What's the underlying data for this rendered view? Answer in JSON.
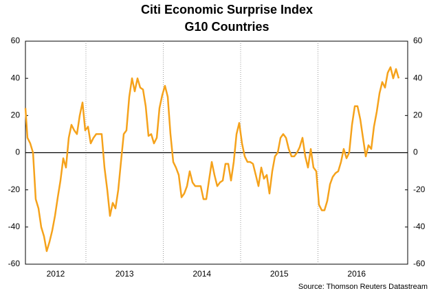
{
  "chart_data": {
    "type": "line",
    "title": "Citi Economic Surprise Index",
    "subtitle": "G10 Countries",
    "source": "Source: Thomson Reuters Datastream",
    "xlim": [
      2012.218,
      2017.16
    ],
    "xticks": [
      2012,
      2013,
      2014,
      2015,
      2016
    ],
    "ylim": [
      -60,
      60
    ],
    "yticks": [
      -60,
      -40,
      -20,
      0,
      20,
      40,
      60
    ],
    "y2lim": [
      -60,
      60
    ],
    "y2ticks": [
      -60,
      -40,
      -20,
      0,
      20,
      40,
      60
    ],
    "zero_line": true,
    "grid": true,
    "x": [
      2012.218,
      2012.244,
      2012.28,
      2012.316,
      2012.351,
      2012.387,
      2012.422,
      2012.458,
      2012.493,
      2012.529,
      2012.564,
      2012.6,
      2012.636,
      2012.671,
      2012.707,
      2012.742,
      2012.778,
      2012.813,
      2012.849,
      2012.884,
      2012.92,
      2012.956,
      2012.991,
      2013.027,
      2013.062,
      2013.098,
      2013.133,
      2013.169,
      2013.204,
      2013.24,
      2013.276,
      2013.311,
      2013.347,
      2013.382,
      2013.418,
      2013.453,
      2013.489,
      2013.524,
      2013.56,
      2013.596,
      2013.631,
      2013.667,
      2013.702,
      2013.738,
      2013.773,
      2013.809,
      2013.844,
      2013.88,
      2013.916,
      2013.951,
      2013.987,
      2014.022,
      2014.058,
      2014.093,
      2014.129,
      2014.164,
      2014.2,
      2014.236,
      2014.271,
      2014.307,
      2014.342,
      2014.378,
      2014.413,
      2014.449,
      2014.484,
      2014.52,
      2014.556,
      2014.591,
      2014.627,
      2014.662,
      2014.698,
      2014.733,
      2014.769,
      2014.804,
      2014.84,
      2014.876,
      2014.911,
      2014.947,
      2014.982,
      2015.018,
      2015.053,
      2015.089,
      2015.124,
      2015.16,
      2015.196,
      2015.231,
      2015.267,
      2015.302,
      2015.338,
      2015.373,
      2015.409,
      2015.444,
      2015.48,
      2015.516,
      2015.551,
      2015.587,
      2015.622,
      2015.658,
      2015.693,
      2015.729,
      2015.764,
      2015.8,
      2015.836,
      2015.871,
      2015.907,
      2015.942,
      2015.978,
      2016.013,
      2016.049,
      2016.084,
      2016.12,
      2016.156,
      2016.191,
      2016.227,
      2016.262,
      2016.298,
      2016.333,
      2016.369,
      2016.404,
      2016.44,
      2016.476,
      2016.511,
      2016.547,
      2016.582,
      2016.618,
      2016.653,
      2016.689,
      2016.724,
      2016.76,
      2016.796,
      2016.831,
      2016.867,
      2016.902,
      2016.938,
      2016.973,
      2017.009,
      2017.044
    ],
    "series": [
      {
        "name": "Citi Economic Surprise Index G10",
        "color": "#f5a21b",
        "values": [
          24,
          8,
          5,
          0,
          -25,
          -30,
          -40,
          -45,
          -53,
          -48,
          -42,
          -34,
          -24,
          -15,
          -3,
          -8,
          8,
          15,
          12,
          10,
          20,
          27,
          12,
          14,
          5,
          8,
          10,
          10,
          10,
          -8,
          -20,
          -34,
          -27,
          -30,
          -20,
          -5,
          10,
          12,
          30,
          40,
          33,
          40,
          35,
          34,
          25,
          9,
          10,
          5,
          8,
          24,
          31,
          36,
          30,
          10,
          -5,
          -8,
          -12,
          -24,
          -22,
          -18,
          -10,
          -16,
          -18,
          -18,
          -18,
          -25,
          -25,
          -15,
          -5,
          -12,
          -18,
          -16,
          -15,
          -6,
          -6,
          -15,
          -5,
          10,
          16,
          5,
          -2,
          -5,
          -5,
          -6,
          -12,
          -18,
          -8,
          -14,
          -12,
          -22,
          -10,
          -2,
          0,
          8,
          10,
          8,
          2,
          -2,
          -2,
          0,
          3,
          8,
          -2,
          -8,
          2,
          -8,
          -10,
          -28,
          -31,
          -31,
          -26,
          -17,
          -13,
          -11,
          -10,
          -5,
          2,
          -3,
          0,
          15,
          25,
          25,
          18,
          8,
          -2,
          4,
          2,
          14,
          22,
          32,
          38,
          35,
          43,
          46,
          40,
          45,
          40
        ]
      }
    ]
  }
}
